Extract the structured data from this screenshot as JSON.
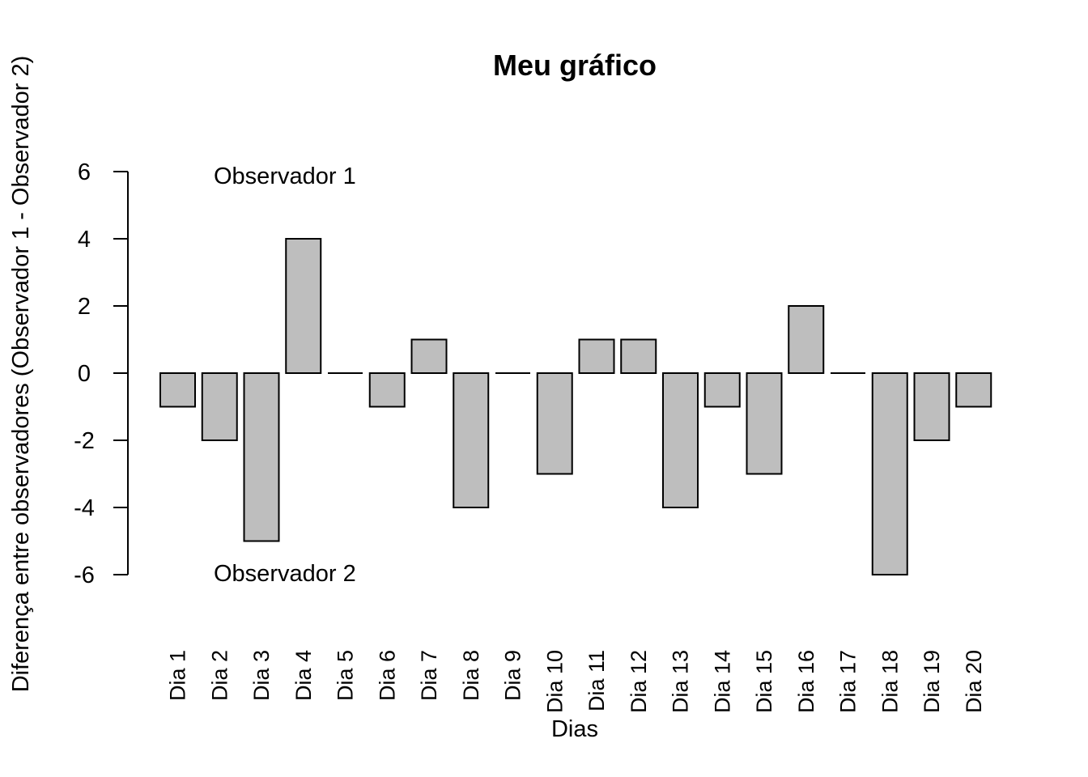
{
  "chart_data": {
    "type": "bar",
    "title": "Meu gráfico",
    "xlabel": "Dias",
    "ylabel": "Diferença entre observadores (Observador 1 - Observador 2)",
    "categories": [
      "Dia 1",
      "Dia 2",
      "Dia 3",
      "Dia 4",
      "Dia 5",
      "Dia 6",
      "Dia 7",
      "Dia 8",
      "Dia 9",
      "Dia 10",
      "Dia 11",
      "Dia 12",
      "Dia 13",
      "Dia 14",
      "Dia 15",
      "Dia 16",
      "Dia 17",
      "Dia 18",
      "Dia 19",
      "Dia 20"
    ],
    "values": [
      -1,
      -2,
      -5,
      4,
      0,
      -1,
      1,
      -4,
      0,
      -3,
      1,
      1,
      -4,
      -1,
      -3,
      2,
      0,
      -6,
      -2,
      -1
    ],
    "yticks": [
      6,
      4,
      2,
      0,
      -2,
      -4,
      -6
    ],
    "ylim": [
      -6,
      6
    ],
    "annotations": {
      "top": "Observador 1",
      "bottom": "Observador 2"
    },
    "bar_color": "#bebebe",
    "grid": false,
    "legend": "none"
  }
}
